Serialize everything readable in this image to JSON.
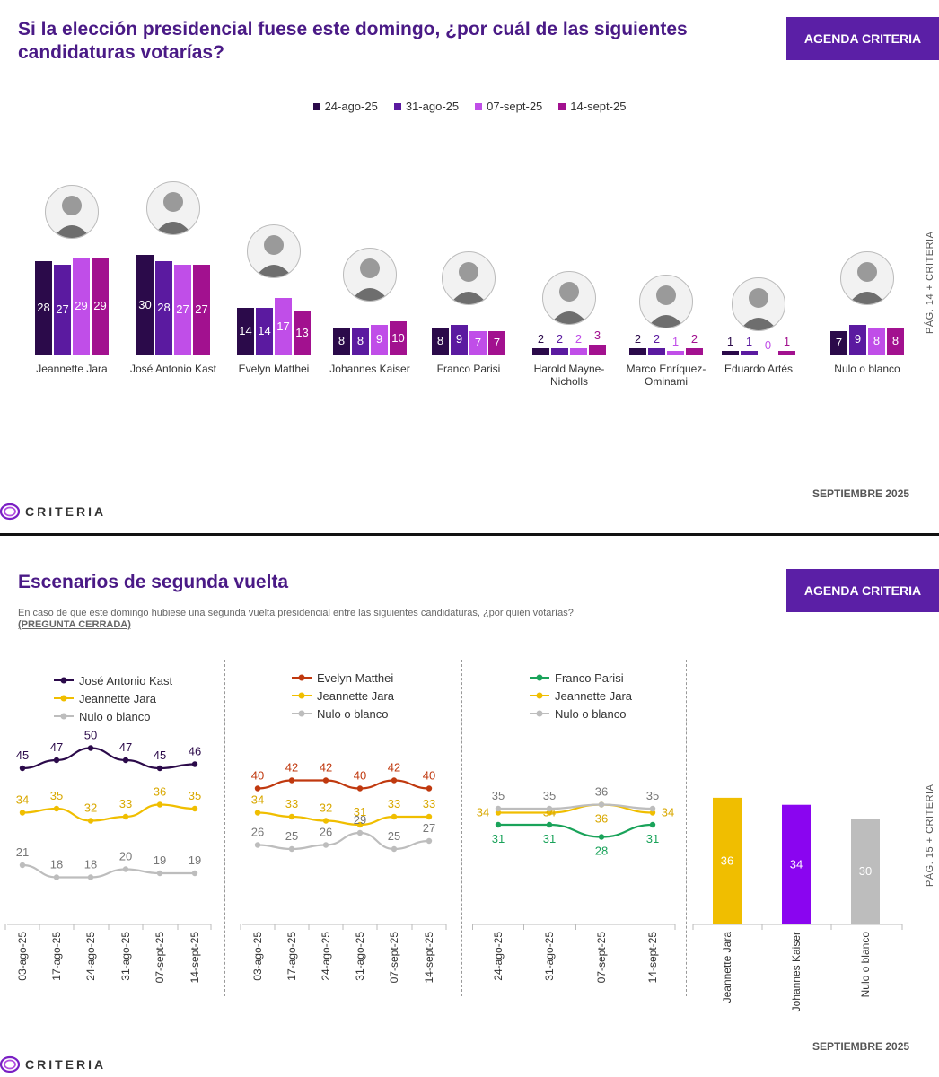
{
  "page1": {
    "title": "Si la elección presidencial fuese este domingo, ¿por cuál de las siguientes candidaturas votarías?",
    "agenda_button": "AGENDA CRITERIA",
    "side_label": "PÁG. 14 + CRITERIA",
    "footer_month": "SEPTIEMBRE 2025",
    "brand": "CRITERIA"
  },
  "page2": {
    "title": "Escenarios de segunda vuelta",
    "subtitle": "En caso de que este domingo hubiese una segunda vuelta presidencial entre las siguientes candidaturas, ¿por quién votarías?",
    "subtitle_tag": "(PREGUNTA CERRADA)",
    "agenda_button": "AGENDA CRITERIA",
    "side_label": "PÁG. 15 + CRITERIA",
    "footer_month": "SEPTIEMBRE 2025",
    "brand": "CRITERIA"
  },
  "colors": {
    "s1": "#2b0a4a",
    "s2": "#5b1aa0",
    "s3": "#c04ee8",
    "s4": "#a2118f",
    "kast": "#2b0a4a",
    "jara": "#f0be00",
    "nulo": "#bdbdbd",
    "matthei": "#c0390f",
    "parisi": "#1aa35a",
    "kaiser_bar": "#8a05f0",
    "accent": "#5b1fa6"
  },
  "chart_data": [
    {
      "type": "bar",
      "series": [
        {
          "name": "24-ago-25",
          "values": [
            28,
            30,
            14,
            8,
            8,
            2,
            2,
            1,
            7
          ]
        },
        {
          "name": "31-ago-25",
          "values": [
            27,
            28,
            14,
            8,
            9,
            2,
            2,
            1,
            9
          ]
        },
        {
          "name": "07-sept-25",
          "values": [
            29,
            27,
            17,
            9,
            7,
            2,
            1,
            0,
            8
          ]
        },
        {
          "name": "14-sept-25",
          "values": [
            29,
            27,
            13,
            10,
            7,
            3,
            2,
            1,
            8
          ]
        }
      ],
      "categories": [
        "Jeannette Jara",
        "José Antonio Kast",
        "Evelyn Matthei",
        "Johannes Kaiser",
        "Franco Parisi",
        "Harold Mayne-Nicholls",
        "Marco Enríquez-Ominami",
        "Eduardo Artés",
        "Nulo o blanco"
      ],
      "legend": "top-center"
    },
    {
      "type": "line",
      "x": [
        "03-ago-25",
        "17-ago-25",
        "24-ago-25",
        "31-ago-25",
        "07-sept-25",
        "14-sept-25"
      ],
      "series": [
        {
          "name": "José Antonio Kast",
          "values": [
            45,
            47,
            50,
            47,
            45,
            46
          ]
        },
        {
          "name": "Jeannette Jara",
          "values": [
            34,
            35,
            32,
            33,
            36,
            35
          ]
        },
        {
          "name": "Nulo o blanco",
          "values": [
            21,
            18,
            18,
            20,
            19,
            19
          ]
        }
      ]
    },
    {
      "type": "line",
      "x": [
        "03-ago-25",
        "17-ago-25",
        "24-ago-25",
        "31-ago-25",
        "07-sept-25",
        "14-sept-25"
      ],
      "series": [
        {
          "name": "Evelyn Matthei",
          "values": [
            40,
            42,
            42,
            40,
            42,
            40
          ]
        },
        {
          "name": "Jeannette Jara",
          "values": [
            34,
            33,
            32,
            31,
            33,
            33
          ]
        },
        {
          "name": "Nulo o blanco",
          "values": [
            26,
            25,
            26,
            29,
            25,
            27
          ]
        }
      ]
    },
    {
      "type": "line",
      "x": [
        "24-ago-25",
        "31-ago-25",
        "07-sept-25",
        "14-sept-25"
      ],
      "series": [
        {
          "name": "Franco Parisi",
          "values": [
            31,
            31,
            28,
            31
          ]
        },
        {
          "name": "Jeannette Jara",
          "values": [
            34,
            34,
            36,
            34
          ]
        },
        {
          "name": "Nulo o blanco",
          "values": [
            35,
            35,
            36,
            35
          ]
        }
      ]
    },
    {
      "type": "bar",
      "categories": [
        "Jeannette Jara",
        "Johannes Kaiser",
        "Nulo o blanco"
      ],
      "values": [
        36,
        34,
        30
      ]
    }
  ]
}
